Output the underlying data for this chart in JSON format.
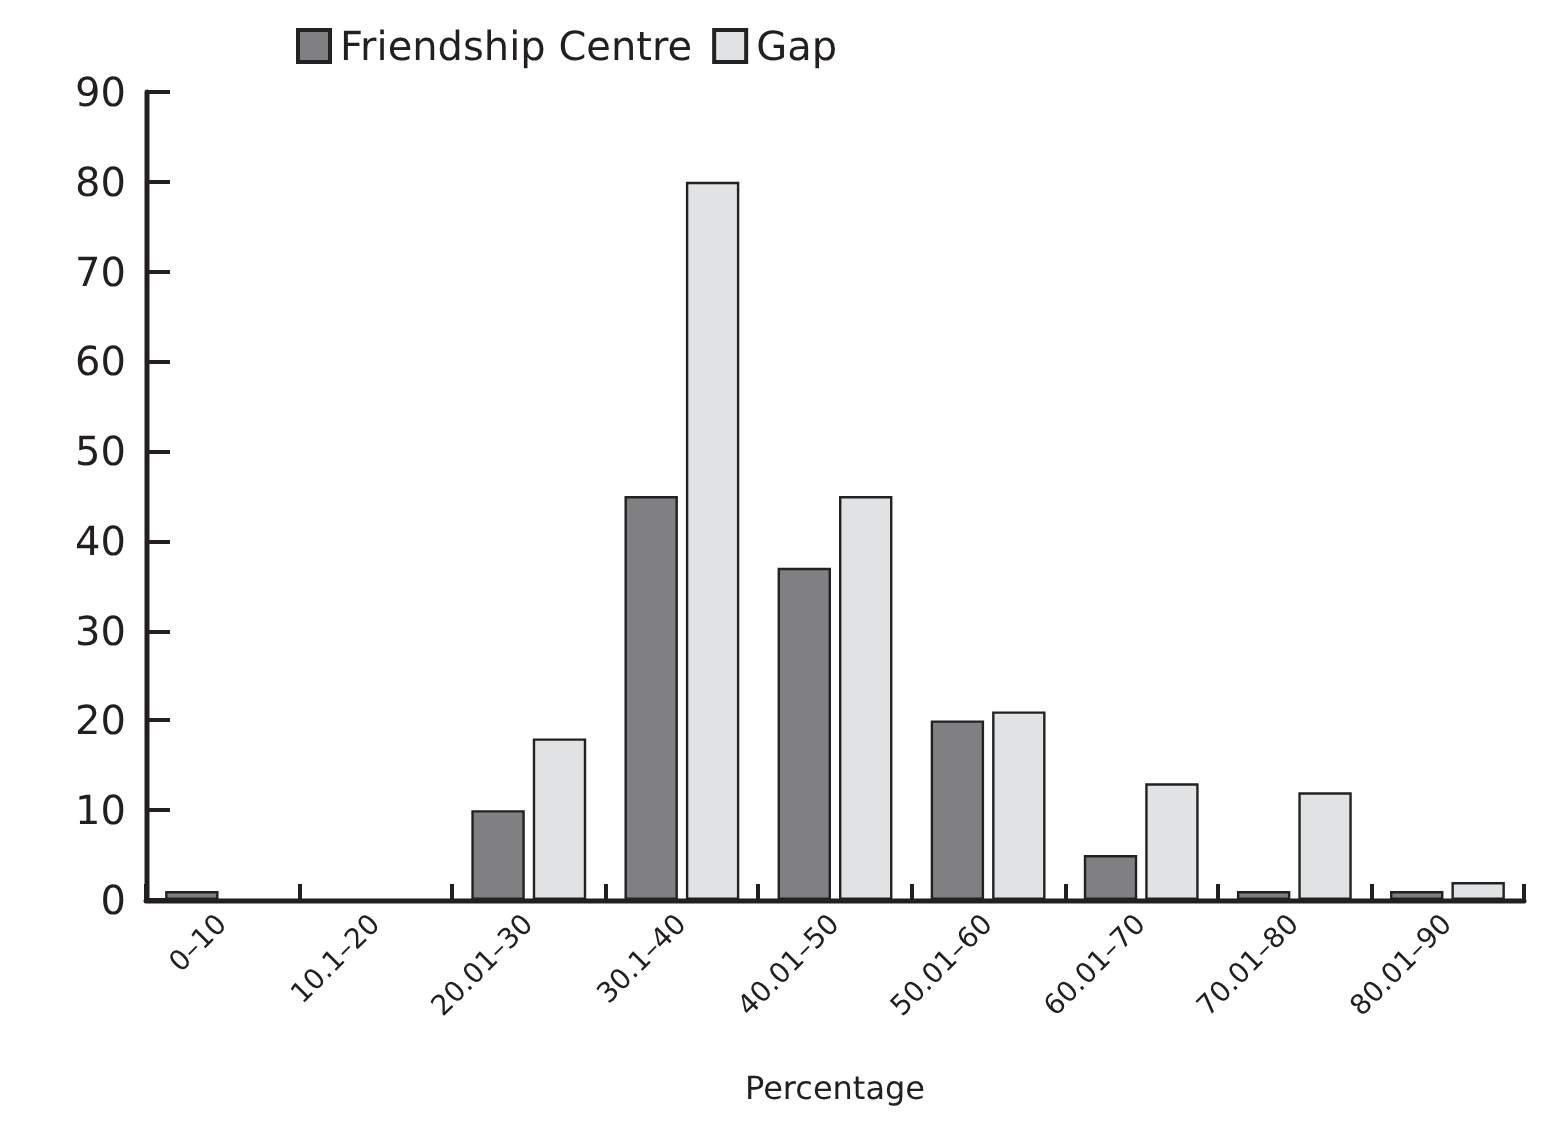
{
  "chart_data": {
    "type": "bar",
    "xlabel": "Percentage",
    "categories": [
      "0–10",
      "10.1–20",
      "20.01–30",
      "30.1–40",
      "40.01–50",
      "50.01–60",
      "60.01–70",
      "70.01–80",
      "80.01–90"
    ],
    "series": [
      {
        "name": "Friendship Centre",
        "color": "#808083",
        "values": [
          1,
          0,
          10,
          45,
          37,
          20,
          5,
          1,
          1
        ]
      },
      {
        "name": "Gap",
        "color": "#e1e2e4",
        "values": [
          0,
          0,
          18,
          80,
          45,
          21,
          13,
          12,
          2
        ]
      }
    ],
    "ylim": [
      0,
      90
    ],
    "yticks": [
      0,
      10,
      20,
      30,
      40,
      50,
      60,
      70,
      80,
      90
    ],
    "grid": false,
    "legend": "top"
  }
}
